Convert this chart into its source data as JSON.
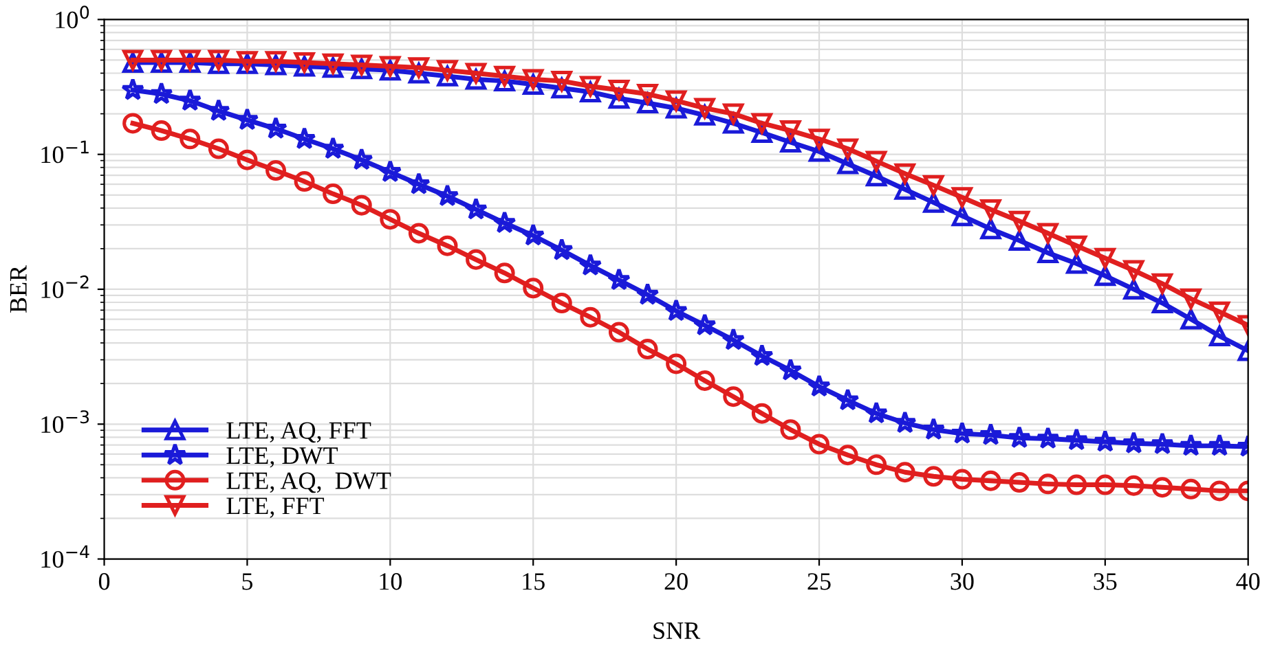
{
  "chart_data": {
    "type": "line",
    "xlabel": "SNR",
    "ylabel": "BER",
    "log": "y",
    "grid": true,
    "legend": "bottom left",
    "line_style": "solid",
    "x": [
      1,
      2,
      3,
      4,
      5,
      6,
      7,
      8,
      9,
      10,
      11,
      12,
      13,
      14,
      15,
      16,
      17,
      18,
      19,
      20,
      21,
      22,
      23,
      24,
      25,
      26,
      27,
      28,
      29,
      30,
      31,
      32,
      33,
      34,
      35,
      36,
      37,
      38,
      39,
      40
    ],
    "xlim": [
      0,
      40
    ],
    "xticks": [
      0,
      5,
      10,
      15,
      20,
      25,
      30,
      35,
      40
    ],
    "ylim": [
      0.0001,
      1
    ],
    "yticks": [
      {
        "value": 0.0001,
        "label": "10$^{−4}$"
      },
      {
        "value": 0.001,
        "label": "10$^{−3}$"
      },
      {
        "value": 0.01,
        "label": "10$^{−2}$"
      },
      {
        "value": 0.1,
        "label": "10$^{−1}$"
      },
      {
        "value": 1,
        "label": "10$^{0}$"
      }
    ],
    "series": [
      {
        "name": "LTE, AQ, FFT",
        "color": "#1a1ad8",
        "marker": "triangle",
        "values": [
          0.48,
          0.48,
          0.48,
          0.47,
          0.47,
          0.46,
          0.45,
          0.44,
          0.43,
          0.42,
          0.4,
          0.38,
          0.36,
          0.35,
          0.33,
          0.31,
          0.29,
          0.26,
          0.24,
          0.22,
          0.195,
          0.17,
          0.145,
          0.123,
          0.105,
          0.085,
          0.069,
          0.055,
          0.044,
          0.035,
          0.028,
          0.023,
          0.0186,
          0.0155,
          0.0126,
          0.01,
          0.0079,
          0.006,
          0.0045,
          0.0035
        ]
      },
      {
        "name": "LTE, DWT",
        "color": "#1a1ad8",
        "marker": "star",
        "values": [
          0.3,
          0.28,
          0.25,
          0.21,
          0.18,
          0.155,
          0.13,
          0.11,
          0.091,
          0.074,
          0.06,
          0.049,
          0.039,
          0.031,
          0.025,
          0.0195,
          0.015,
          0.0117,
          0.0091,
          0.0069,
          0.0054,
          0.0042,
          0.0032,
          0.0025,
          0.0019,
          0.0015,
          0.0012,
          0.00102,
          0.00091,
          0.00085,
          0.00083,
          0.00079,
          0.00078,
          0.00076,
          0.00074,
          0.00072,
          0.00071,
          0.00069,
          0.00069,
          0.00068
        ]
      },
      {
        "name": "LTE, AQ,  DWT",
        "color": "#e01f1f",
        "marker": "circle",
        "values": [
          0.17,
          0.15,
          0.13,
          0.11,
          0.091,
          0.076,
          0.063,
          0.051,
          0.042,
          0.033,
          0.026,
          0.021,
          0.0166,
          0.0132,
          0.0102,
          0.0079,
          0.0062,
          0.0048,
          0.0036,
          0.0028,
          0.0021,
          0.0016,
          0.0012,
          0.00091,
          0.00071,
          0.00059,
          0.0005,
          0.00044,
          0.00041,
          0.00039,
          0.00038,
          0.00037,
          0.00036,
          0.000355,
          0.000355,
          0.00035,
          0.00034,
          0.00033,
          0.00032,
          0.00032
        ]
      },
      {
        "name": "LTE, FFT",
        "color": "#e01f1f",
        "marker": "triangle-down",
        "values": [
          0.5,
          0.5,
          0.5,
          0.5,
          0.49,
          0.49,
          0.48,
          0.47,
          0.46,
          0.45,
          0.44,
          0.42,
          0.4,
          0.38,
          0.36,
          0.35,
          0.32,
          0.3,
          0.28,
          0.25,
          0.22,
          0.2,
          0.17,
          0.15,
          0.13,
          0.11,
          0.089,
          0.072,
          0.059,
          0.048,
          0.039,
          0.032,
          0.026,
          0.021,
          0.017,
          0.0138,
          0.011,
          0.0085,
          0.0068,
          0.0054
        ]
      }
    ]
  }
}
